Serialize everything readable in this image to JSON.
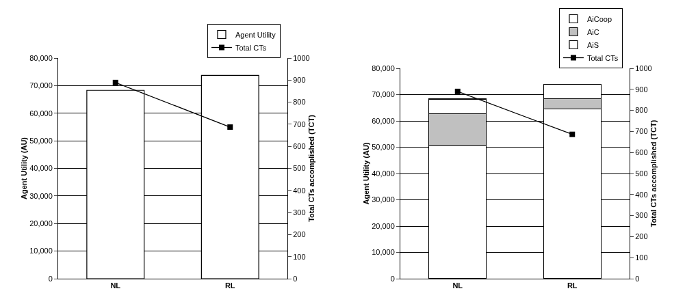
{
  "chart_data": [
    {
      "type": "bar",
      "categories": [
        "NL",
        "RL"
      ],
      "ylabel": "Agent Utility (AU)",
      "y2label": "Total CTs accomplished (TCT)",
      "series": [
        {
          "name": "Agent Utility",
          "color": "#ffffff",
          "values": [
            68300,
            73700
          ]
        },
        {
          "name": "Total CTs",
          "type": "line",
          "axis": "y2",
          "color": "#000000",
          "values": [
            889,
            687
          ]
        }
      ],
      "ylim": [
        0,
        80000
      ],
      "yticks": [
        0,
        {
          "value": 10000,
          "label": "10,000"
        },
        {
          "value": 20000,
          "label": "20,000"
        },
        {
          "value": 30000,
          "label": "30,000"
        },
        {
          "value": 40000,
          "label": "40,000"
        },
        {
          "value": 50000,
          "label": "50,000"
        },
        {
          "value": 60000,
          "label": "60,000"
        },
        {
          "value": 70000,
          "label": "70,000"
        },
        {
          "value": 80000,
          "label": "80,000"
        }
      ],
      "y2lim": [
        0,
        1000
      ],
      "y2ticks": [
        0,
        100,
        200,
        300,
        400,
        500,
        600,
        700,
        800,
        900,
        1000
      ],
      "grid": "y",
      "legend": "top right",
      "marker": "square",
      "line_style": "solid"
    },
    {
      "type": "bar",
      "categories": [
        "NL",
        "RL"
      ],
      "ylabel": "Agent Utility (AU)",
      "y2label": "Total CTs accomplished (TCT)",
      "stacked": true,
      "series": [
        {
          "name": "AiS",
          "color": "#ffffff",
          "values": [
            50600,
            64600
          ]
        },
        {
          "name": "AiC",
          "color": "#c0c0c0",
          "values": [
            12200,
            3900
          ]
        },
        {
          "name": "AiCoop",
          "color": "#ffffff",
          "values": [
            5500,
            5300
          ]
        },
        {
          "name": "Total CTs",
          "type": "line",
          "axis": "y2",
          "color": "#000000",
          "values": [
            890,
            686
          ]
        }
      ],
      "ylim": [
        0,
        80000
      ],
      "yticks": [
        0,
        {
          "value": 10000,
          "label": "10,000"
        },
        {
          "value": 20000,
          "label": "20,000"
        },
        {
          "value": 30000,
          "label": "30,000"
        },
        {
          "value": 40000,
          "label": "40,000"
        },
        {
          "value": 50000,
          "label": "50,000"
        },
        {
          "value": 60000,
          "label": "60,000"
        },
        {
          "value": 70000,
          "label": "70,000"
        },
        {
          "value": 80000,
          "label": "80,000"
        }
      ],
      "y2lim": [
        0,
        1000
      ],
      "y2ticks": [
        0,
        100,
        200,
        300,
        400,
        500,
        600,
        700,
        800,
        900,
        1000
      ],
      "grid": "y",
      "legend": "top right",
      "marker": "square",
      "line_style": "solid"
    }
  ]
}
